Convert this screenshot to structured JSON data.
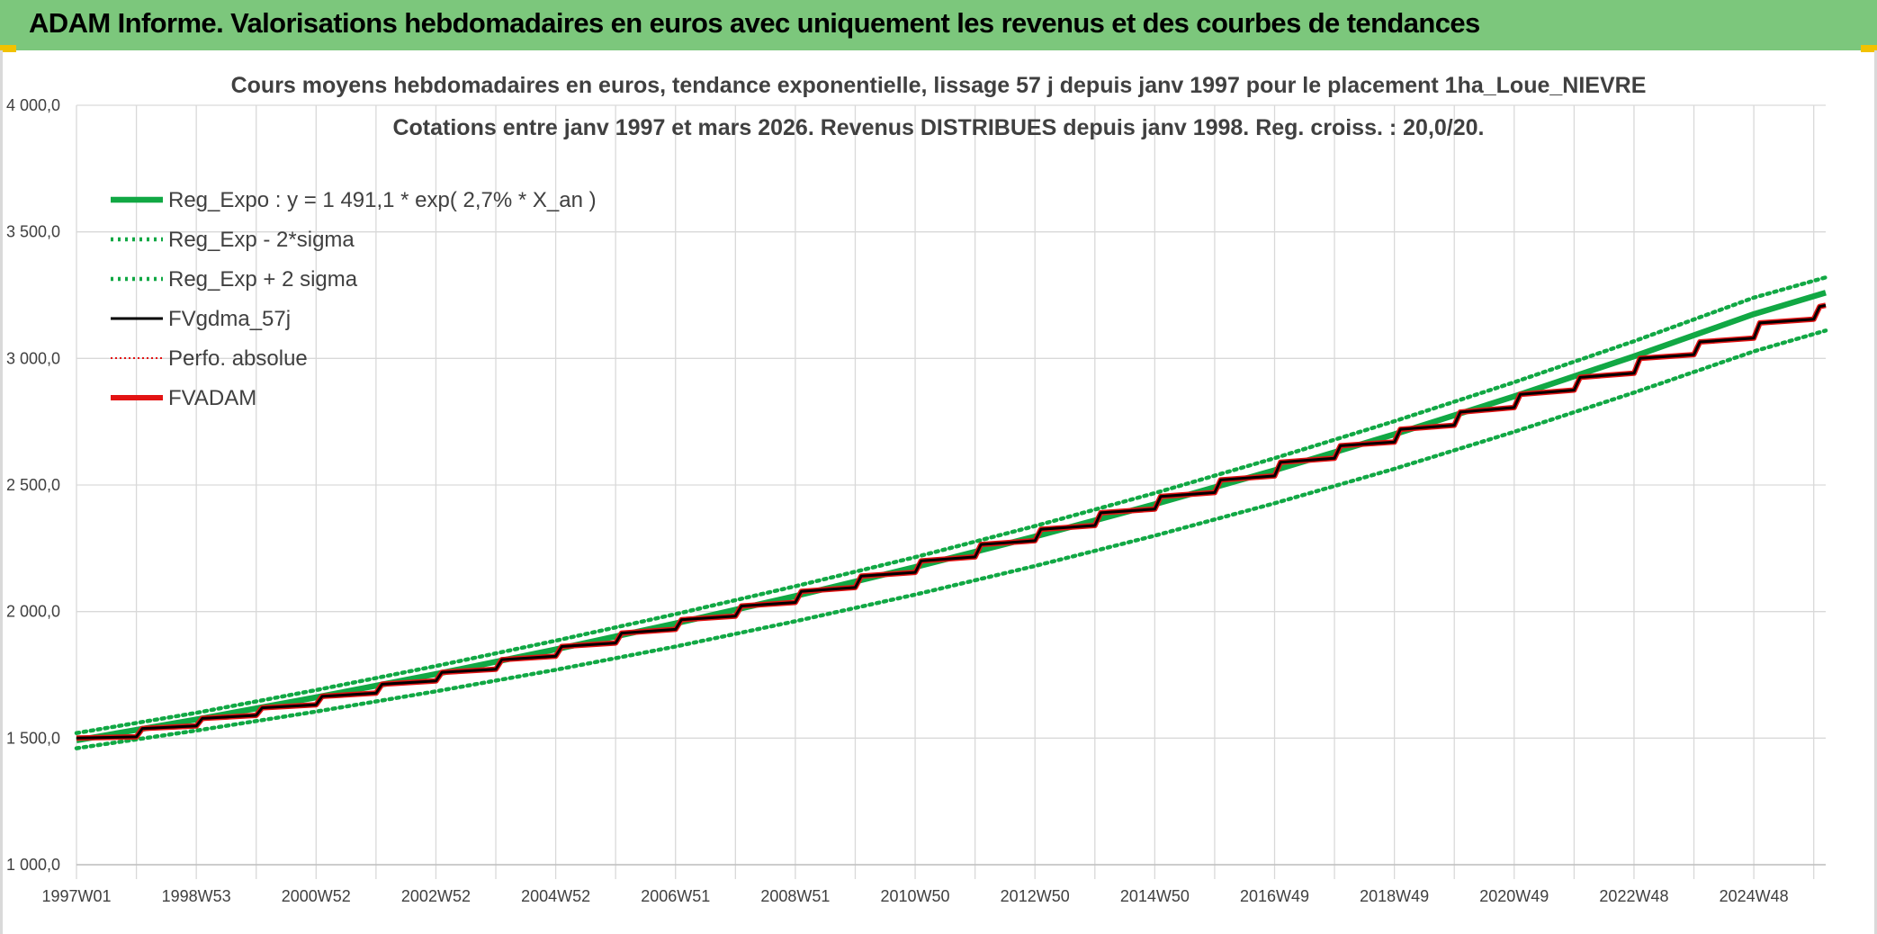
{
  "header": {
    "title": "ADAM Informe. Valorisations hebdomadaires en euros avec uniquement les revenus et des courbes de tendances"
  },
  "colors": {
    "header_bg": "#7cc77c",
    "trend_green": "#11a844",
    "price_black": "#000000",
    "adam_red": "#e31313",
    "grid": "#d9d9d9"
  },
  "chart_data": {
    "type": "line",
    "title": "Cours moyens hebdomadaires en euros, tendance exponentielle, lissage 57 j depuis janv 1997 pour le placement 1ha_Loue_NIEVRE",
    "subtitle": "Cotations entre janv 1997 et mars 2026. Revenus DISTRIBUES depuis janv 1998. Reg. croiss. : 20,0/20.",
    "xlabel": "",
    "ylabel": "",
    "ylim": [
      1000,
      4000
    ],
    "yticks": [
      "1 000,0",
      "1 500,0",
      "2 000,0",
      "2 500,0",
      "3 000,0",
      "3 500,0",
      "4 000,0"
    ],
    "ytick_values": [
      1000,
      1500,
      2000,
      2500,
      3000,
      3500,
      4000
    ],
    "xlim": [
      1997.0,
      2026.2
    ],
    "xtick_labels": [
      "1997W01",
      "1998W53",
      "2000W52",
      "2002W52",
      "2004W52",
      "2006W51",
      "2008W51",
      "2010W50",
      "2012W50",
      "2014W50",
      "2016W49",
      "2018W49",
      "2020W49",
      "2022W48",
      "2024W48"
    ],
    "xtick_positions": [
      1997.0,
      1999.0,
      2001.0,
      2003.0,
      2005.0,
      2007.0,
      2009.0,
      2011.0,
      2013.0,
      2015.0,
      2017.0,
      2019.0,
      2021.0,
      2023.0,
      2025.0
    ],
    "grid": true,
    "legend_position": "top-left",
    "series": [
      {
        "name": "Reg_Expo : y = 1 491,1 * exp( 2,7% *  X_an )",
        "style": "solid-thick",
        "color": "#11a844",
        "x": [
          1997,
          1999,
          2001,
          2003,
          2005,
          2007,
          2009,
          2011,
          2013,
          2015,
          2017,
          2019,
          2021,
          2023,
          2025,
          2026.2
        ],
        "values": [
          1491.1,
          1573.8,
          1661.1,
          1753.3,
          1850.5,
          1953.2,
          2061.5,
          2175.9,
          2296.5,
          2423.9,
          2558.4,
          2700.3,
          2850.1,
          3008.2,
          3175.0,
          3260.0
        ]
      },
      {
        "name": "Reg_Exp - 2*sigma",
        "style": "dotted",
        "color": "#11a844",
        "x": [
          1997,
          1999,
          2001,
          2003,
          2005,
          2007,
          2009,
          2011,
          2013,
          2015,
          2017,
          2019,
          2021,
          2023,
          2025,
          2026.2
        ],
        "values": [
          1460,
          1530,
          1605,
          1685,
          1770,
          1862,
          1962,
          2067,
          2180,
          2300,
          2428,
          2564,
          2710,
          2865,
          3028,
          3110
        ]
      },
      {
        "name": "Reg_Exp + 2 sigma",
        "style": "dotted",
        "color": "#11a844",
        "x": [
          1997,
          1999,
          2001,
          2003,
          2005,
          2007,
          2009,
          2011,
          2013,
          2015,
          2017,
          2019,
          2021,
          2023,
          2025,
          2026.2
        ],
        "values": [
          1520,
          1600,
          1690,
          1785,
          1885,
          1990,
          2100,
          2215,
          2338,
          2468,
          2606,
          2752,
          2906,
          3068,
          3240,
          3320
        ]
      },
      {
        "name": "FVgdma_57j",
        "style": "solid",
        "color": "#000000",
        "x": [
          1997.0,
          1998.0,
          1998.1,
          1999.0,
          1999.1,
          2000.0,
          2000.1,
          2001.0,
          2001.1,
          2002.0,
          2002.1,
          2003.0,
          2003.1,
          2004.0,
          2004.1,
          2005.0,
          2005.1,
          2006.0,
          2006.1,
          2007.0,
          2007.1,
          2008.0,
          2008.1,
          2009.0,
          2009.1,
          2010.0,
          2010.1,
          2011.0,
          2011.1,
          2012.0,
          2012.1,
          2013.0,
          2013.1,
          2014.0,
          2014.1,
          2015.0,
          2015.1,
          2016.0,
          2016.1,
          2017.0,
          2017.1,
          2018.0,
          2018.1,
          2019.0,
          2019.1,
          2020.0,
          2020.1,
          2021.0,
          2021.1,
          2022.0,
          2022.1,
          2023.0,
          2023.1,
          2024.0,
          2024.1,
          2025.0,
          2025.1,
          2026.0,
          2026.1,
          2026.2
        ],
        "values": [
          1500,
          1505,
          1538,
          1548,
          1578,
          1590,
          1620,
          1632,
          1665,
          1678,
          1713,
          1726,
          1760,
          1772,
          1810,
          1824,
          1862,
          1876,
          1915,
          1930,
          1968,
          1982,
          2022,
          2036,
          2080,
          2095,
          2140,
          2155,
          2200,
          2216,
          2265,
          2280,
          2325,
          2340,
          2390,
          2405,
          2455,
          2470,
          2520,
          2536,
          2590,
          2606,
          2655,
          2670,
          2720,
          2736,
          2788,
          2806,
          2858,
          2875,
          2925,
          2942,
          3000,
          3015,
          3065,
          3080,
          3140,
          3155,
          3205,
          3210
        ]
      },
      {
        "name": "Perfo. absolue",
        "style": "dotted",
        "color": "#e31313",
        "x": [
          1997.0,
          1998.0,
          1998.1,
          1999.0,
          1999.1,
          2000.0,
          2000.1,
          2001.0,
          2001.1,
          2002.0,
          2002.1,
          2003.0,
          2003.1,
          2004.0,
          2004.1,
          2005.0,
          2005.1,
          2006.0,
          2006.1,
          2007.0,
          2007.1,
          2008.0,
          2008.1,
          2009.0,
          2009.1,
          2010.0,
          2010.1,
          2011.0,
          2011.1,
          2012.0,
          2012.1,
          2013.0,
          2013.1,
          2014.0,
          2014.1,
          2015.0,
          2015.1,
          2016.0,
          2016.1,
          2017.0,
          2017.1,
          2018.0,
          2018.1,
          2019.0,
          2019.1,
          2020.0,
          2020.1,
          2021.0,
          2021.1,
          2022.0,
          2022.1,
          2023.0,
          2023.1,
          2024.0,
          2024.1,
          2025.0,
          2025.1,
          2026.0,
          2026.1,
          2026.2
        ],
        "values": [
          1500,
          1505,
          1538,
          1548,
          1578,
          1590,
          1620,
          1632,
          1665,
          1678,
          1713,
          1726,
          1760,
          1772,
          1810,
          1824,
          1862,
          1876,
          1915,
          1930,
          1968,
          1982,
          2022,
          2036,
          2080,
          2095,
          2140,
          2155,
          2200,
          2216,
          2265,
          2280,
          2325,
          2340,
          2390,
          2405,
          2455,
          2470,
          2520,
          2536,
          2590,
          2606,
          2655,
          2670,
          2720,
          2736,
          2788,
          2806,
          2858,
          2875,
          2925,
          2942,
          3000,
          3015,
          3065,
          3080,
          3140,
          3155,
          3205,
          3210
        ]
      },
      {
        "name": "FVADAM",
        "style": "solid-thick",
        "color": "#e31313",
        "x": [
          1997.0,
          1998.0,
          1998.1,
          1999.0,
          1999.1,
          2000.0,
          2000.1,
          2001.0,
          2001.1,
          2002.0,
          2002.1,
          2003.0,
          2003.1,
          2004.0,
          2004.1,
          2005.0,
          2005.1,
          2006.0,
          2006.1,
          2007.0,
          2007.1,
          2008.0,
          2008.1,
          2009.0,
          2009.1,
          2010.0,
          2010.1,
          2011.0,
          2011.1,
          2012.0,
          2012.1,
          2013.0,
          2013.1,
          2014.0,
          2014.1,
          2015.0,
          2015.1,
          2016.0,
          2016.1,
          2017.0,
          2017.1,
          2018.0,
          2018.1,
          2019.0,
          2019.1,
          2020.0,
          2020.1,
          2021.0,
          2021.1,
          2022.0,
          2022.1,
          2023.0,
          2023.1,
          2024.0,
          2024.1,
          2025.0,
          2025.1,
          2026.0,
          2026.1,
          2026.2
        ],
        "values": [
          1500,
          1505,
          1538,
          1548,
          1578,
          1590,
          1620,
          1632,
          1665,
          1678,
          1713,
          1726,
          1760,
          1772,
          1810,
          1824,
          1862,
          1876,
          1915,
          1930,
          1968,
          1982,
          2022,
          2036,
          2080,
          2095,
          2140,
          2155,
          2200,
          2216,
          2265,
          2280,
          2325,
          2340,
          2390,
          2405,
          2455,
          2470,
          2520,
          2536,
          2590,
          2606,
          2655,
          2670,
          2720,
          2736,
          2788,
          2806,
          2858,
          2875,
          2925,
          2942,
          3000,
          3015,
          3065,
          3080,
          3140,
          3155,
          3205,
          3210
        ]
      }
    ]
  }
}
